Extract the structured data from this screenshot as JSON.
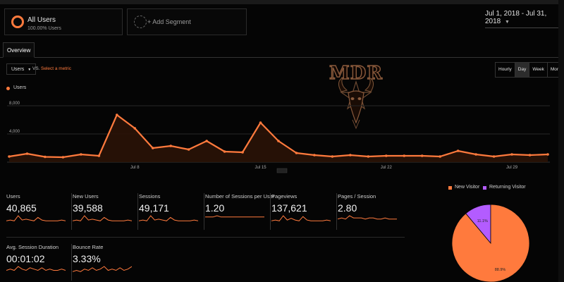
{
  "segments": {
    "all_users_title": "All Users",
    "all_users_sub": "100.00% Users",
    "add_segment": "+ Add Segment"
  },
  "date_range": "Jul 1, 2018 - Jul 31, 2018",
  "tabs": {
    "overview": "Overview"
  },
  "chart_controls": {
    "metric": "Users",
    "vs": "VS.",
    "select_metric": "Select a metric",
    "periods": [
      "Hourly",
      "Day",
      "Week",
      "Month"
    ],
    "active_period": "Day"
  },
  "logo_text": "MDR",
  "colors": {
    "accent": "#ff7a3d",
    "returning": "#b35cff",
    "background": "#050505"
  },
  "chart_data": [
    {
      "type": "line",
      "legend": "Users",
      "x": [
        "Jul 1",
        "Jul 2",
        "Jul 3",
        "Jul 4",
        "Jul 5",
        "Jul 6",
        "Jul 7",
        "Jul 8",
        "Jul 9",
        "Jul 10",
        "Jul 11",
        "Jul 12",
        "Jul 13",
        "Jul 14",
        "Jul 15",
        "Jul 16",
        "Jul 17",
        "Jul 18",
        "Jul 19",
        "Jul 20",
        "Jul 21",
        "Jul 22",
        "Jul 23",
        "Jul 24",
        "Jul 25",
        "Jul 26",
        "Jul 27",
        "Jul 28",
        "Jul 29",
        "Jul 30",
        "Jul 31"
      ],
      "series": [
        {
          "name": "Users",
          "values": [
            800,
            1200,
            750,
            700,
            1100,
            900,
            6700,
            4800,
            2000,
            2300,
            1800,
            3000,
            1500,
            1400,
            5600,
            3000,
            1300,
            1000,
            800,
            1000,
            800,
            900,
            900,
            900,
            800,
            1600,
            1100,
            800,
            1100,
            1000,
            1100
          ]
        }
      ],
      "yticks": [
        "8,000",
        "4,000"
      ],
      "xticks": [
        {
          "label": "Jul 8",
          "x": "Jul 8"
        },
        {
          "label": "Jul 15",
          "x": "Jul 15"
        },
        {
          "label": "Jul 22",
          "x": "Jul 22"
        },
        {
          "label": "Jul 29",
          "x": "Jul 29"
        }
      ],
      "ylim": [
        0,
        10000
      ],
      "legend_position": "top-left"
    },
    {
      "type": "pie",
      "labels": [
        "New Visitor",
        "Returning Visitor"
      ],
      "values": [
        88.9,
        11.1
      ],
      "value_labels": [
        "88.9%",
        "11.1%"
      ],
      "colors": [
        "#ff7a3d",
        "#b35cff"
      ],
      "legend_position": "top"
    }
  ],
  "metrics": [
    {
      "label": "Users",
      "value": "40,865",
      "spark": [
        3,
        4,
        3,
        9,
        4,
        5,
        4,
        3,
        7,
        4,
        3,
        3,
        3,
        3,
        4,
        3
      ]
    },
    {
      "label": "New Users",
      "value": "39,588",
      "spark": [
        3,
        4,
        3,
        9,
        4,
        5,
        4,
        3,
        7,
        4,
        3,
        3,
        3,
        3,
        4,
        3
      ]
    },
    {
      "label": "Sessions",
      "value": "49,171",
      "spark": [
        3,
        4,
        3,
        9,
        4,
        5,
        4,
        3,
        7,
        4,
        3,
        3,
        3,
        3,
        4,
        3
      ]
    },
    {
      "label": "Number of Sessions per User",
      "value": "1.20",
      "spark": [
        5,
        5,
        5,
        6,
        5,
        5,
        5,
        5,
        5,
        5,
        5,
        5,
        5,
        5,
        5,
        5
      ]
    },
    {
      "label": "Pageviews",
      "value": "137,621",
      "spark": [
        3,
        4,
        3,
        9,
        4,
        6,
        4,
        3,
        8,
        4,
        3,
        3,
        3,
        3,
        4,
        3
      ]
    },
    {
      "label": "Pages / Session",
      "value": "2.80",
      "spark": [
        4,
        5,
        4,
        7,
        5,
        5,
        5,
        4,
        5,
        5,
        4,
        4,
        5,
        4,
        4,
        4
      ]
    },
    {
      "label": "Avg. Session Duration",
      "value": "00:01:02",
      "spark": [
        3,
        4,
        3,
        6,
        4,
        3,
        5,
        4,
        3,
        5,
        3,
        4,
        3,
        3,
        4,
        3
      ]
    },
    {
      "label": "Bounce Rate",
      "value": "3.33%",
      "spark": [
        2,
        3,
        2,
        4,
        3,
        5,
        3,
        4,
        6,
        3,
        4,
        3,
        5,
        3,
        4,
        6
      ]
    }
  ]
}
